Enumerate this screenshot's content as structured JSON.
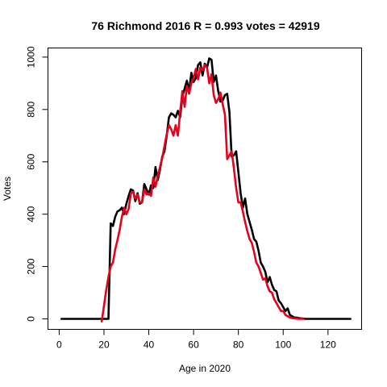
{
  "chart_data": {
    "type": "line",
    "title": "76 Richmond 2016 R = 0.993 votes = 42919",
    "xlabel": "Age in 2020",
    "ylabel": "Votes",
    "xlim": [
      -5,
      135
    ],
    "ylim": [
      -40,
      1035
    ],
    "xticks": [
      0,
      20,
      40,
      60,
      80,
      100,
      120
    ],
    "yticks": [
      0,
      200,
      400,
      600,
      800,
      1000
    ],
    "grid": false,
    "colors": {
      "black_series": "#000000",
      "red_series": "#e8001c"
    },
    "series": [
      {
        "color": "black",
        "x": [
          1,
          2,
          3,
          4,
          5,
          6,
          7,
          8,
          9,
          10,
          11,
          12,
          13,
          14,
          15,
          16,
          17,
          18,
          19,
          20,
          21,
          22,
          23,
          24,
          25,
          26,
          27,
          28,
          29,
          30,
          31,
          32,
          33,
          34,
          35,
          36,
          37,
          38,
          39,
          40,
          41,
          42,
          43,
          44,
          45,
          46,
          47,
          48,
          49,
          50,
          51,
          52,
          53,
          54,
          55,
          56,
          57,
          58,
          59,
          60,
          61,
          62,
          63,
          64,
          65,
          66,
          67,
          68,
          69,
          70,
          71,
          72,
          73,
          74,
          75,
          76,
          77,
          78,
          79,
          80,
          81,
          82,
          83,
          84,
          85,
          86,
          87,
          88,
          89,
          90,
          91,
          92,
          93,
          94,
          95,
          96,
          97,
          98,
          99,
          100,
          101,
          102,
          103,
          104,
          105,
          106,
          107,
          108,
          109,
          110,
          111,
          112,
          113,
          114,
          115,
          116,
          117,
          118,
          119,
          120,
          121,
          122,
          123,
          124,
          125,
          126,
          127,
          128,
          129,
          130
        ],
        "y": [
          0,
          0,
          0,
          0,
          0,
          0,
          0,
          0,
          0,
          0,
          0,
          0,
          0,
          0,
          0,
          0,
          0,
          0,
          0,
          0,
          0,
          0,
          365,
          355,
          390,
          410,
          415,
          425,
          400,
          440,
          470,
          495,
          490,
          450,
          480,
          440,
          445,
          515,
          495,
          475,
          510,
          500,
          580,
          530,
          570,
          620,
          640,
          700,
          770,
          785,
          780,
          770,
          795,
          770,
          850,
          880,
          910,
          870,
          940,
          905,
          920,
          970,
          980,
          930,
          975,
          960,
          995,
          990,
          905,
          930,
          870,
          830,
          835,
          855,
          860,
          790,
          620,
          625,
          640,
          560,
          480,
          425,
          460,
          400,
          370,
          340,
          305,
          295,
          260,
          215,
          200,
          180,
          140,
          160,
          130,
          110,
          105,
          70,
          60,
          45,
          30,
          40,
          15,
          10,
          5,
          5,
          3,
          2,
          1,
          0,
          0,
          0,
          0,
          0,
          0,
          0,
          0,
          0,
          0,
          0,
          0,
          0,
          0,
          0,
          0,
          0,
          0,
          0,
          0,
          0
        ]
      },
      {
        "color": "red",
        "x": [
          19,
          20,
          21,
          22,
          23,
          24,
          25,
          26,
          27,
          28,
          29,
          30,
          31,
          32,
          33,
          34,
          35,
          36,
          37,
          38,
          39,
          40,
          41,
          42,
          43,
          44,
          45,
          46,
          47,
          48,
          49,
          50,
          51,
          52,
          53,
          54,
          55,
          56,
          57,
          58,
          59,
          60,
          61,
          62,
          63,
          64,
          65,
          66,
          67,
          68,
          69,
          70,
          71,
          72,
          73,
          74,
          75,
          76,
          77,
          78,
          79,
          80,
          81,
          82,
          83,
          84,
          85,
          86,
          87,
          88,
          89,
          90,
          91,
          92,
          93,
          94,
          95,
          96,
          97,
          98,
          99,
          100,
          101,
          102,
          103,
          104,
          105,
          106,
          107,
          108,
          109
        ],
        "y": [
          -10,
          50,
          110,
          160,
          200,
          215,
          265,
          300,
          340,
          390,
          425,
          400,
          420,
          480,
          485,
          460,
          475,
          445,
          445,
          495,
          475,
          480,
          470,
          540,
          505,
          545,
          580,
          615,
          660,
          705,
          740,
          725,
          700,
          740,
          700,
          790,
          870,
          810,
          890,
          860,
          900,
          920,
          955,
          915,
          960,
          950,
          970,
          960,
          900,
          935,
          855,
          825,
          840,
          865,
          820,
          780,
          610,
          625,
          640,
          575,
          500,
          445,
          445,
          410,
          370,
          335,
          305,
          290,
          255,
          215,
          200,
          175,
          150,
          155,
          125,
          105,
          100,
          75,
          60,
          45,
          30,
          30,
          15,
          10,
          5,
          3,
          2,
          1,
          0,
          0,
          0
        ]
      }
    ]
  }
}
